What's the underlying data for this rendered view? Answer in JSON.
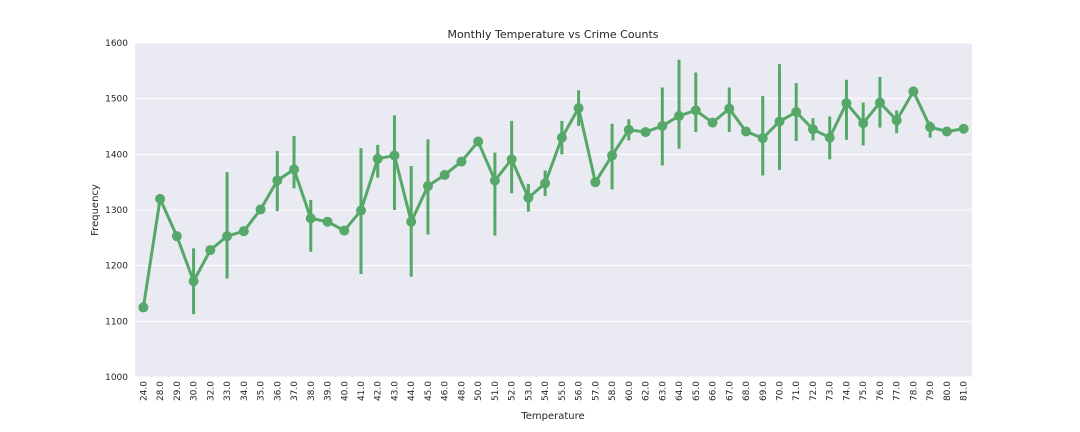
{
  "chart_data": {
    "type": "line",
    "title": "Monthly Temperature vs Crime Counts",
    "xlabel": "Temperature",
    "ylabel": "Frequency",
    "ylim": [
      1000,
      1600
    ],
    "yticks": [
      "1000",
      "1100",
      "1200",
      "1300",
      "1400",
      "1500",
      "1600"
    ],
    "grid": true,
    "legend": "none",
    "colors": {
      "series": "#55a868",
      "background": "#eaeaf2",
      "grid": "#ffffff"
    },
    "categories": [
      "24.0",
      "28.0",
      "29.0",
      "30.0",
      "32.0",
      "33.0",
      "34.0",
      "35.0",
      "36.0",
      "37.0",
      "38.0",
      "39.0",
      "40.0",
      "41.0",
      "42.0",
      "43.0",
      "44.0",
      "45.0",
      "46.0",
      "48.0",
      "50.0",
      "51.0",
      "52.0",
      "53.0",
      "54.0",
      "55.0",
      "56.0",
      "57.0",
      "58.0",
      "60.0",
      "62.0",
      "63.0",
      "64.0",
      "65.0",
      "66.0",
      "67.0",
      "68.0",
      "69.0",
      "70.0",
      "71.0",
      "72.0",
      "73.0",
      "74.0",
      "75.0",
      "76.0",
      "77.0",
      "78.0",
      "79.0",
      "80.0",
      "81.0"
    ],
    "values": [
      1125,
      1320,
      1253,
      1172,
      1228,
      1253,
      1262,
      1301,
      1353,
      1373,
      1285,
      1279,
      1263,
      1299,
      1392,
      1398,
      1279,
      1343,
      1363,
      1387,
      1423,
      1353,
      1391,
      1322,
      1348,
      1430,
      1483,
      1350,
      1398,
      1444,
      1440,
      1451,
      1469,
      1479,
      1457,
      1482,
      1441,
      1429,
      1459,
      1476,
      1445,
      1430,
      1492,
      1456,
      1493,
      1461,
      1513,
      1449,
      1441,
      1446
    ],
    "error_low": [
      null,
      null,
      null,
      1113,
      null,
      1177,
      null,
      null,
      1298,
      1339,
      1225,
      null,
      null,
      1185,
      1358,
      1300,
      1180,
      1256,
      null,
      null,
      null,
      1254,
      1330,
      1297,
      1325,
      1400,
      1451,
      null,
      1337,
      1425,
      null,
      1380,
      1410,
      1440,
      null,
      1440,
      null,
      1362,
      1372,
      1424,
      1425,
      1391,
      1426,
      1416,
      1448,
      1438,
      null,
      1430,
      null,
      null
    ],
    "error_high": [
      null,
      null,
      null,
      1231,
      null,
      1368,
      null,
      null,
      1406,
      1433,
      1318,
      null,
      null,
      1411,
      1417,
      1470,
      1379,
      1427,
      null,
      null,
      null,
      1403,
      1460,
      1347,
      1371,
      1460,
      1515,
      null,
      1455,
      1463,
      null,
      1520,
      1570,
      1547,
      null,
      1520,
      null,
      1505,
      1562,
      1528,
      1465,
      1468,
      1534,
      1493,
      1539,
      1479,
      null,
      1459,
      null,
      null
    ]
  }
}
